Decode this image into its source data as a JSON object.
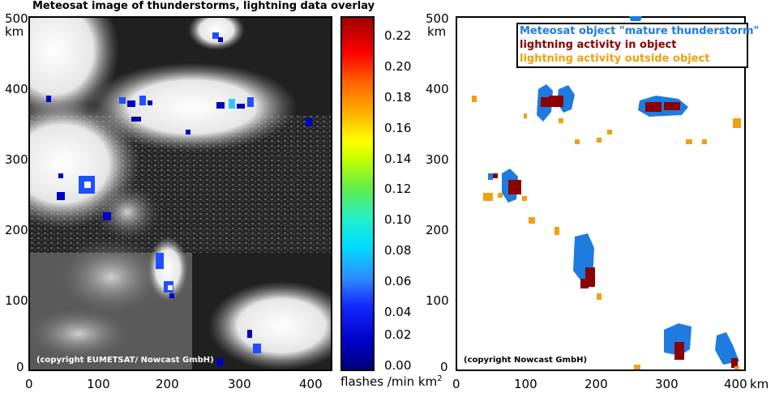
{
  "left_title": "Meteosat image of thunderstorms, lightning data overlay",
  "left_copyright": "(copyright EUMETSAT/ Nowcast GmbH)",
  "right_copyright": "(copyright Nowcast GmbH)",
  "y_unit": "km",
  "x_unit": "km",
  "y_ticks": [
    "500",
    "400",
    "300",
    "200",
    "100",
    "0"
  ],
  "x_ticks": [
    "0",
    "100",
    "200",
    "300",
    "400"
  ],
  "colorbar": {
    "label": "flashes /min km",
    "label_sup": "2",
    "ticks": [
      "0.22",
      "0.20",
      "0.18",
      "0.16",
      "0.14",
      "0.12",
      "0.10",
      "0.08",
      "0.06",
      "0.04",
      "0.02",
      "0.00"
    ]
  },
  "legend": {
    "object": "Meteosat object \"mature thunderstorm\"",
    "in_object": "lightning activity in object",
    "outside": "lightning activity outside object"
  },
  "colors": {
    "object": "#1e7be0",
    "in_object": "#8b0000",
    "outside": "#f0a010",
    "legend_object": "#1e7be0",
    "legend_in": "#8b0000",
    "legend_out": "#f0a010"
  }
}
